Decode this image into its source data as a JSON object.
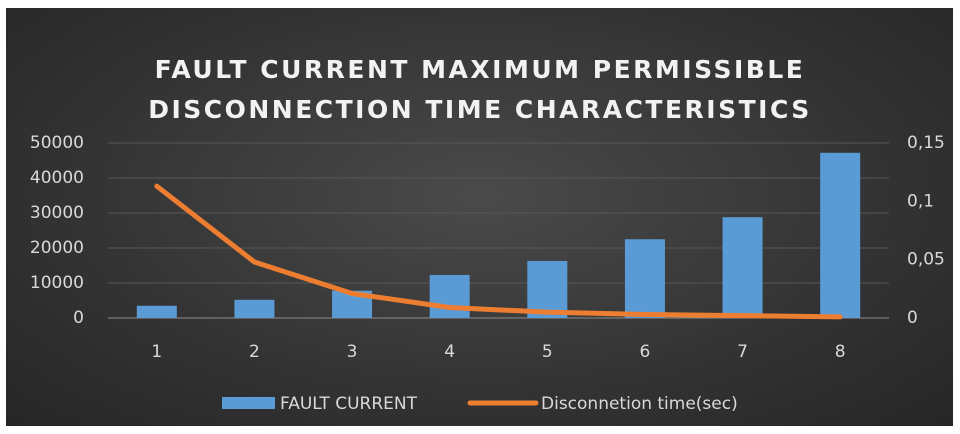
{
  "chart_data": {
    "type": "bar",
    "title": "FAULT CURRENT MAXIMUM PERMISSIBLE DISCONNECTION TIME CHARACTERISTICS",
    "categories": [
      "1",
      "2",
      "3",
      "4",
      "5",
      "6",
      "7",
      "8"
    ],
    "series": [
      {
        "name": "FAULT CURRENT",
        "type": "bar",
        "color": "#5b9bd5",
        "values": [
          3500,
          5200,
          7800,
          12300,
          16300,
          22500,
          28800,
          47200
        ]
      },
      {
        "name": "Disconnetion time(sec)",
        "type": "line",
        "axis": "y2",
        "color": "#ed7d31",
        "values": [
          0.113,
          0.048,
          0.021,
          0.009,
          0.005,
          0.003,
          0.002,
          0.001
        ]
      }
    ],
    "ylim": [
      0,
      50000
    ],
    "yticks": [
      0,
      10000,
      20000,
      30000,
      40000,
      50000
    ],
    "y2lim": [
      0,
      0.15
    ],
    "y2ticks": [
      0,
      {
        "value": 0.05,
        "label": "0,05"
      },
      {
        "value": 0.1,
        "label": "0,1"
      },
      {
        "value": 0.15,
        "label": "0,15"
      }
    ],
    "grid": true,
    "legend": "bottom"
  }
}
